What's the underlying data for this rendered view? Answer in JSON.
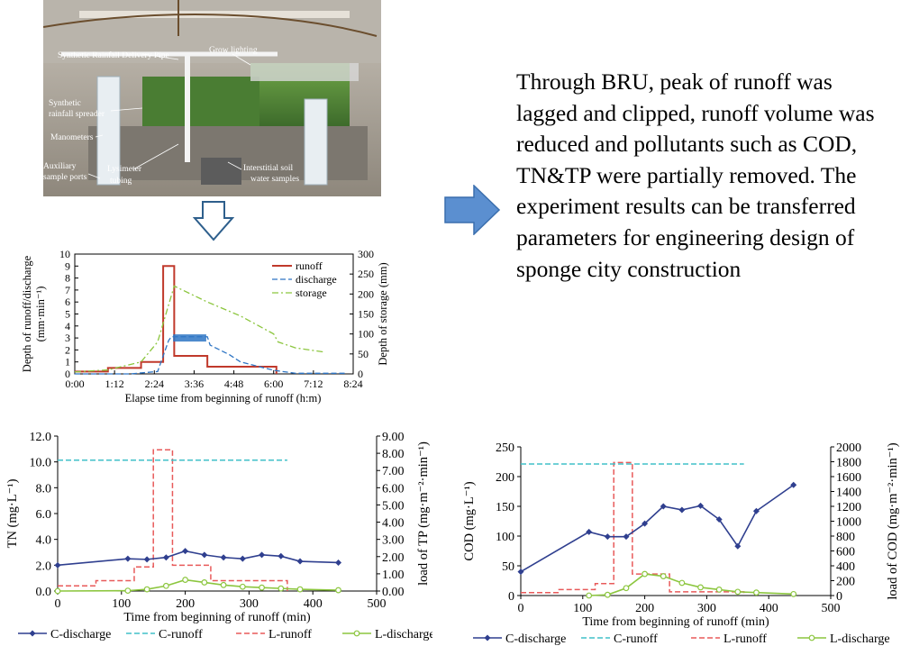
{
  "photo": {
    "labels": {
      "pipe": "Synthetic Rainfall Delivery Pipe",
      "lighting": "Grow lighting",
      "spreader_line1": "Synthetic",
      "spreader_line2": "rainfall spreader",
      "manometers": "Manometers",
      "aux_line1": "Auxiliary",
      "aux_line2": "sample ports",
      "lysimeter_line1": "Lysimeter",
      "lysimeter_line2": "tubing",
      "interstitial_line1": "Interstitial soil",
      "interstitial_line2": "water samples"
    }
  },
  "summary": {
    "text": "Through BRU, peak of runoff was lagged and clipped, runoff volume was reduced and pollutants such as COD, TN&TP were partially removed. The experiment results can be transferred parameters for engineering design of sponge city construction"
  },
  "icons": {
    "right_arrow": "right-arrow-icon",
    "down_arrow": "down-arrow-icon",
    "right_arrow_color": "#5b8fd0",
    "down_arrow_color": "#2e5f8c"
  },
  "chart_data": [
    {
      "type": "line",
      "ylabel_line1": "Depth of runoff/discharge",
      "ylabel_line2": "(mm·min⁻¹)",
      "y2label": "Depth of storage (mm)",
      "xlabel": "Elapse time from beginning of runoff (h:m)",
      "xticks": [
        "0:00",
        "1:12",
        "2:24",
        "3:36",
        "4:48",
        "6:00",
        "7:12",
        "8:24"
      ],
      "xlim_min": [
        0,
        504
      ],
      "ylim": [
        0,
        10
      ],
      "y2lim": [
        0,
        300
      ],
      "yticks": [
        0,
        1,
        2,
        3,
        4,
        5,
        6,
        7,
        8,
        9,
        10
      ],
      "y2ticks": [
        0,
        50,
        100,
        150,
        200,
        250,
        300
      ],
      "legend_position": "top-right",
      "series": [
        {
          "name": "runoff",
          "color": "#c0392b",
          "dash": "solid",
          "axis": "left",
          "x": [
            0,
            60,
            60,
            120,
            120,
            160,
            160,
            180,
            180,
            240,
            240,
            365,
            365
          ],
          "y": [
            0.2,
            0.2,
            0.5,
            0.5,
            1.0,
            1.0,
            9.0,
            9.0,
            1.5,
            1.5,
            0.6,
            0.6,
            0
          ]
        },
        {
          "name": "discharge",
          "color": "#2e75c4",
          "dash": "dashed",
          "axis": "left",
          "x": [
            0,
            100,
            150,
            160,
            170,
            175,
            240,
            245,
            280,
            300,
            360,
            400,
            490
          ],
          "y": [
            0,
            0,
            0.2,
            1.5,
            2.8,
            3.1,
            3.1,
            2.4,
            1.6,
            1.0,
            0.3,
            0.05,
            0.05
          ]
        },
        {
          "name": "storage",
          "color": "#8cc63f",
          "dash": "dashdot",
          "axis": "right",
          "x": [
            0,
            60,
            120,
            150,
            165,
            180,
            240,
            300,
            360,
            368,
            400,
            450
          ],
          "y": [
            5,
            10,
            30,
            80,
            150,
            220,
            180,
            145,
            100,
            80,
            65,
            55
          ]
        }
      ]
    },
    {
      "type": "line",
      "ylabel": "TN (mg·L⁻¹)",
      "y2label": "load of TP (mg·m⁻²·min⁻¹)",
      "xlabel": "Time from beginning of runoff (min)",
      "xlim": [
        0,
        500
      ],
      "xticks": [
        0,
        100,
        200,
        300,
        400,
        500
      ],
      "ylim": [
        0,
        12
      ],
      "yticks": [
        "0.0",
        "2.0",
        "4.0",
        "6.0",
        "8.0",
        "10.0",
        "12.0"
      ],
      "y2lim": [
        0,
        9
      ],
      "y2ticks": [
        "0.00",
        "1.00",
        "2.00",
        "3.00",
        "4.00",
        "5.00",
        "6.00",
        "7.00",
        "8.00",
        "9.00"
      ],
      "legend_position": "bottom",
      "series": [
        {
          "name": "C-discharge",
          "color": "#2f3f8f",
          "marker": "diamond",
          "axis": "left",
          "x": [
            0,
            110,
            140,
            170,
            200,
            230,
            260,
            290,
            320,
            350,
            380,
            440
          ],
          "y": [
            2.0,
            2.5,
            2.45,
            2.6,
            3.1,
            2.8,
            2.6,
            2.5,
            2.8,
            2.7,
            2.3,
            2.2
          ]
        },
        {
          "name": "C-runoff",
          "color": "#40c0c8",
          "dash": "dashed",
          "axis": "right",
          "x": [
            0,
            360
          ],
          "y": [
            7.6,
            7.6
          ]
        },
        {
          "name": "L-runoff",
          "color": "#e85a5a",
          "dash": "dashed",
          "axis": "right",
          "x": [
            0,
            60,
            60,
            120,
            120,
            150,
            150,
            180,
            180,
            240,
            240,
            360,
            360
          ],
          "y": [
            0.3,
            0.3,
            0.6,
            0.6,
            1.4,
            1.4,
            8.2,
            8.2,
            1.5,
            1.5,
            0.6,
            0.6,
            0
          ]
        },
        {
          "name": "L-discharge",
          "color": "#8cc63f",
          "marker": "circle",
          "axis": "right",
          "x": [
            0,
            110,
            140,
            170,
            200,
            230,
            260,
            290,
            320,
            350,
            380,
            440
          ],
          "y": [
            0,
            0.02,
            0.1,
            0.3,
            0.65,
            0.5,
            0.35,
            0.25,
            0.2,
            0.15,
            0.1,
            0.05
          ]
        }
      ]
    },
    {
      "type": "line",
      "ylabel": "COD (mg·L⁻¹)",
      "y2label": "load of COD (mg·m⁻²·min⁻¹)",
      "xlabel": "Time from beginning of runoff (min)",
      "xlim": [
        0,
        500
      ],
      "xticks": [
        0,
        100,
        200,
        300,
        400,
        500
      ],
      "ylim": [
        0,
        250
      ],
      "yticks": [
        0,
        50,
        100,
        150,
        200,
        250
      ],
      "y2lim": [
        0,
        2000
      ],
      "y2ticks": [
        0,
        200,
        400,
        600,
        800,
        1000,
        1200,
        1400,
        1600,
        1800,
        2000
      ],
      "legend_position": "bottom",
      "series": [
        {
          "name": "C-discharge",
          "color": "#2f3f8f",
          "marker": "diamond",
          "axis": "left",
          "x": [
            0,
            110,
            140,
            170,
            200,
            230,
            260,
            290,
            320,
            350,
            380,
            440
          ],
          "y": [
            40,
            107,
            99,
            99,
            121,
            150,
            144,
            151,
            128,
            83,
            142,
            186
          ]
        },
        {
          "name": "C-runoff",
          "color": "#40c0c8",
          "dash": "dashed",
          "axis": "right",
          "x": [
            0,
            360
          ],
          "y": [
            1770,
            1770
          ]
        },
        {
          "name": "L-runoff",
          "color": "#e85a5a",
          "dash": "dashed",
          "axis": "right",
          "x": [
            0,
            60,
            60,
            120,
            120,
            150,
            150,
            180,
            180,
            240,
            240,
            360,
            360
          ],
          "y": [
            40,
            40,
            80,
            80,
            160,
            160,
            1790,
            1790,
            290,
            290,
            50,
            50,
            0
          ]
        },
        {
          "name": "L-discharge",
          "color": "#8cc63f",
          "marker": "circle",
          "axis": "right",
          "x": [
            110,
            140,
            170,
            200,
            230,
            260,
            290,
            320,
            350,
            380,
            440
          ],
          "y": [
            0,
            10,
            100,
            290,
            260,
            170,
            110,
            80,
            50,
            40,
            20
          ]
        }
      ]
    }
  ]
}
